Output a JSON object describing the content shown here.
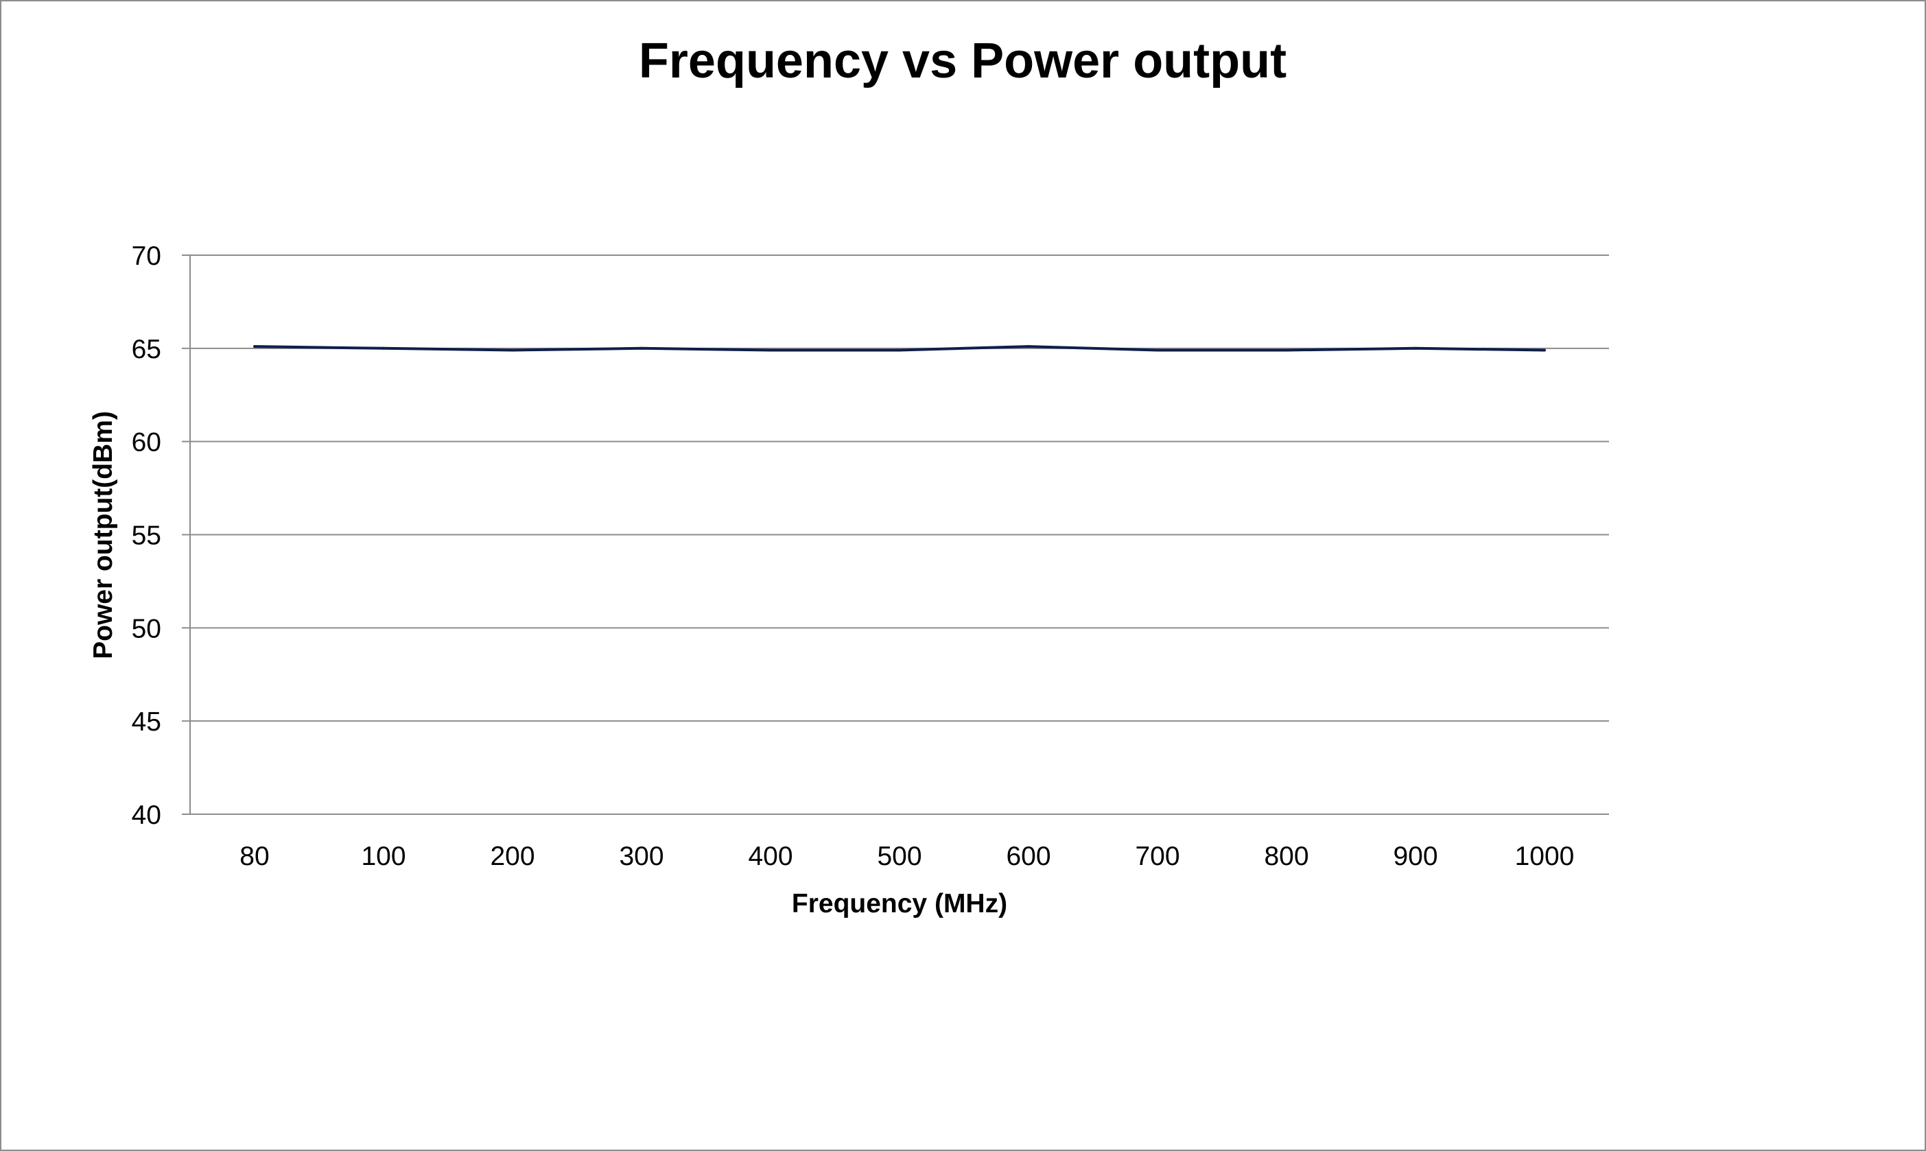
{
  "chart_data": {
    "type": "line",
    "title": "Frequency vs Power output",
    "xlabel": "Frequency (MHz)",
    "ylabel": "Power output(dBm)",
    "categories": [
      "80",
      "100",
      "200",
      "300",
      "400",
      "500",
      "600",
      "700",
      "800",
      "900",
      "1000"
    ],
    "series": [
      {
        "values": [
          65.1,
          65.0,
          64.9,
          65.0,
          64.9,
          64.9,
          65.1,
          64.9,
          64.9,
          65.0,
          64.9
        ]
      }
    ],
    "ylim": [
      40,
      70
    ],
    "yticks": [
      "40",
      "45",
      "50",
      "55",
      "60",
      "65",
      "70"
    ],
    "grid": true,
    "legend": "none",
    "colors": {
      "line": "#0f1f4b",
      "grid": "#8c8c8c",
      "border": "#8c8c8c"
    }
  }
}
